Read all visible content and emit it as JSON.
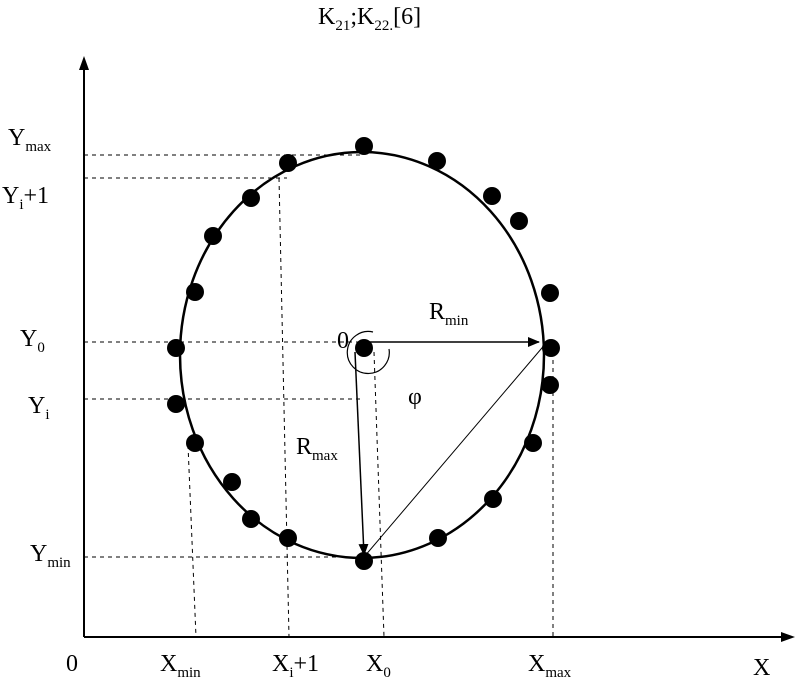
{
  "title": {
    "base1": "K",
    "sub1": "21",
    "mid": ";K",
    "sub2": "22.",
    "tail": "[6]"
  },
  "axes": {
    "x_label": "X",
    "origin_label": "0"
  },
  "y_labels": {
    "ymax": {
      "base": "Y",
      "sub": "max"
    },
    "yi1": {
      "base": "Y",
      "sub": "i",
      "tail": "+1"
    },
    "y0": {
      "base": "Y",
      "sub": "0"
    },
    "yi": {
      "base": "Y",
      "sub": "i"
    },
    "ymin": {
      "base": "Y",
      "sub": "min"
    }
  },
  "x_labels": {
    "xmin": {
      "base": "X",
      "sub": "min"
    },
    "xi1": {
      "base": "X",
      "sub": "i",
      "tail": "+1"
    },
    "x0": {
      "base": "X",
      "sub": "0"
    },
    "xmax": {
      "base": "X",
      "sub": "max"
    }
  },
  "inner_labels": {
    "center": "0",
    "rmin": {
      "base": "R",
      "sub": "min"
    },
    "rmax": {
      "base": "R",
      "sub": "max"
    },
    "phi": "φ"
  },
  "colors": {
    "ink": "#000000",
    "background": "#ffffff"
  }
}
